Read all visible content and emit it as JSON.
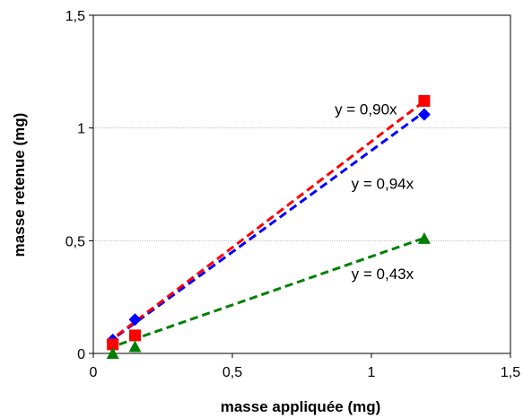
{
  "chart_data": {
    "type": "scatter",
    "title": "",
    "xlabel": "masse appliquée (mg)",
    "ylabel": "masse retenue (mg)",
    "xlim": [
      0,
      1.5
    ],
    "ylim": [
      0,
      1.5
    ],
    "x_ticks": [
      0,
      0.5,
      1,
      1.5
    ],
    "y_ticks": [
      0,
      0.5,
      1,
      1.5
    ],
    "x_tick_labels": [
      "0",
      "0,5",
      "1",
      "1,5"
    ],
    "y_tick_labels": [
      "0",
      "0,5",
      "1",
      "1,5"
    ],
    "grid": "horizontal",
    "legend": "none",
    "series": [
      {
        "marker": "diamond",
        "color": "#0000ff",
        "points": [
          [
            0.07,
            0.06
          ],
          [
            0.15,
            0.15
          ],
          [
            1.19,
            1.06
          ]
        ],
        "trend_slope": 0.9,
        "trend_x_range": [
          0.05,
          1.19
        ],
        "equation": "y = 0,90x"
      },
      {
        "marker": "square",
        "color": "#ff0000",
        "points": [
          [
            0.07,
            0.04
          ],
          [
            0.15,
            0.08
          ],
          [
            1.19,
            1.12
          ]
        ],
        "trend_slope": 0.94,
        "trend_x_range": [
          0.05,
          1.19
        ],
        "equation": "y = 0,94x"
      },
      {
        "marker": "triangle",
        "color": "#008000",
        "points": [
          [
            0.07,
            0.0
          ],
          [
            0.15,
            0.03
          ],
          [
            1.19,
            0.51
          ]
        ],
        "trend_slope": 0.43,
        "trend_x_range": [
          0.05,
          1.19
        ],
        "equation": "y = 0,43x"
      }
    ],
    "annotations": [
      {
        "text": "y = 0,90x",
        "x": 0.98,
        "y": 1.06
      },
      {
        "text": "y = 0,94x",
        "x": 1.04,
        "y": 0.73
      },
      {
        "text": "y = 0,43x",
        "x": 1.04,
        "y": 0.33
      }
    ]
  }
}
